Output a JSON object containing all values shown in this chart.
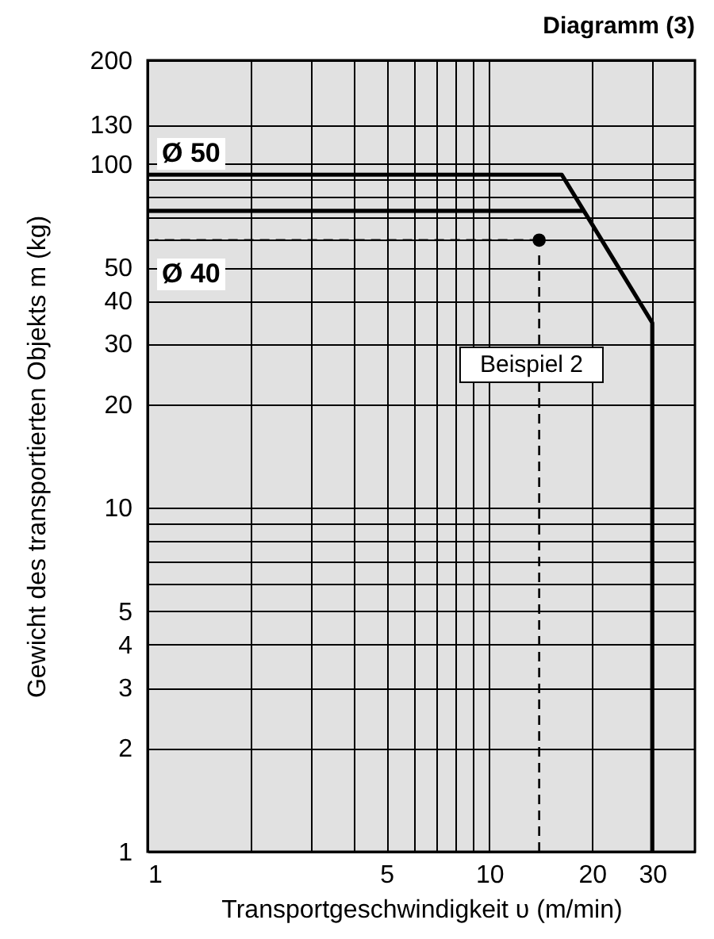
{
  "chart_data": {
    "type": "line",
    "title": "Diagramm (3)",
    "xlabel": "Transportgeschwindigkeit υ (m/min)",
    "ylabel": "Gewicht des transportierten Objekts m (kg)",
    "log": "xy",
    "grid": true,
    "xlim": [
      1,
      40
    ],
    "ylim": [
      1,
      200
    ],
    "xticks": [
      1,
      {
        "value": 2,
        "label": null
      },
      {
        "value": 3,
        "label": null
      },
      {
        "value": 4,
        "label": null
      },
      5,
      {
        "value": 6,
        "label": null
      },
      {
        "value": 7,
        "label": null
      },
      {
        "value": 8,
        "label": null
      },
      {
        "value": 9,
        "label": null
      },
      10,
      20,
      30
    ],
    "yticks": [
      1,
      2,
      3,
      4,
      5,
      {
        "value": 6,
        "label": null
      },
      {
        "value": 7,
        "label": null
      },
      {
        "value": 8,
        "label": null
      },
      {
        "value": 9,
        "label": null
      },
      10,
      20,
      30,
      40,
      50,
      {
        "value": 60,
        "label": null
      },
      {
        "value": 70,
        "label": null
      },
      {
        "value": 80,
        "label": null
      },
      {
        "value": 90,
        "label": null
      },
      100,
      130,
      200
    ],
    "series": [
      {
        "name": "Ø 50",
        "color": "#000000",
        "x": [
          1,
          16.3,
          30,
          30
        ],
        "values": [
          93,
          93,
          34.5,
          1
        ]
      },
      {
        "name": "Ø 40",
        "color": "#000000",
        "x": [
          1,
          18.8
        ],
        "values": [
          73,
          73
        ]
      },
      {
        "type": "line",
        "line_style": "dashed",
        "color": "#000000",
        "x": [
          14,
          1.05
        ],
        "values": [
          60,
          60
        ]
      },
      {
        "type": "line",
        "line_style": "dashed",
        "color": "#000000",
        "x": [
          14,
          14
        ],
        "values": [
          1,
          56
        ]
      },
      {
        "type": "scatter",
        "marker": "circle",
        "color": "#000000",
        "x": [
          14
        ],
        "values": [
          60
        ]
      }
    ],
    "annotations": [
      "Beispiel 2"
    ]
  }
}
